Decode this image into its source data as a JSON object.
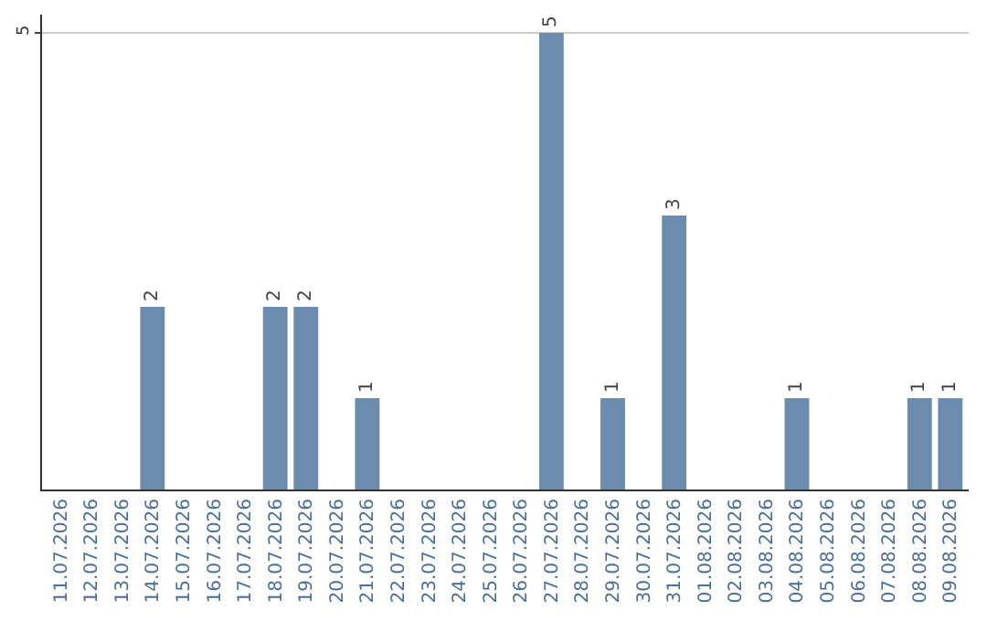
{
  "chart_data": {
    "type": "bar",
    "categories": [
      "11.07.2026",
      "12.07.2026",
      "13.07.2026",
      "14.07.2026",
      "15.07.2026",
      "16.07.2026",
      "17.07.2026",
      "18.07.2026",
      "19.07.2026",
      "20.07.2026",
      "21.07.2026",
      "22.07.2026",
      "23.07.2026",
      "24.07.2026",
      "25.07.2026",
      "26.07.2026",
      "27.07.2026",
      "28.07.2026",
      "29.07.2026",
      "30.07.2026",
      "31.07.2026",
      "01.08.2026",
      "02.08.2026",
      "03.08.2026",
      "04.08.2026",
      "05.08.2026",
      "06.08.2026",
      "07.08.2026",
      "08.08.2026",
      "09.08.2026"
    ],
    "values": [
      0,
      0,
      0,
      2,
      0,
      0,
      0,
      2,
      2,
      0,
      1,
      0,
      0,
      0,
      0,
      0,
      5,
      0,
      1,
      0,
      3,
      0,
      0,
      0,
      1,
      0,
      0,
      0,
      1,
      1
    ],
    "value_labels": [
      null,
      null,
      null,
      "2",
      null,
      null,
      null,
      "2",
      "2",
      null,
      "1",
      null,
      null,
      null,
      null,
      null,
      "5",
      null,
      "1",
      null,
      "3",
      null,
      null,
      null,
      "1",
      null,
      null,
      null,
      "1",
      "1"
    ],
    "color": "#6b8cac",
    "ylim": [
      0,
      5.2
    ],
    "yticks": [
      5
    ],
    "grid": "y",
    "legend": false
  }
}
